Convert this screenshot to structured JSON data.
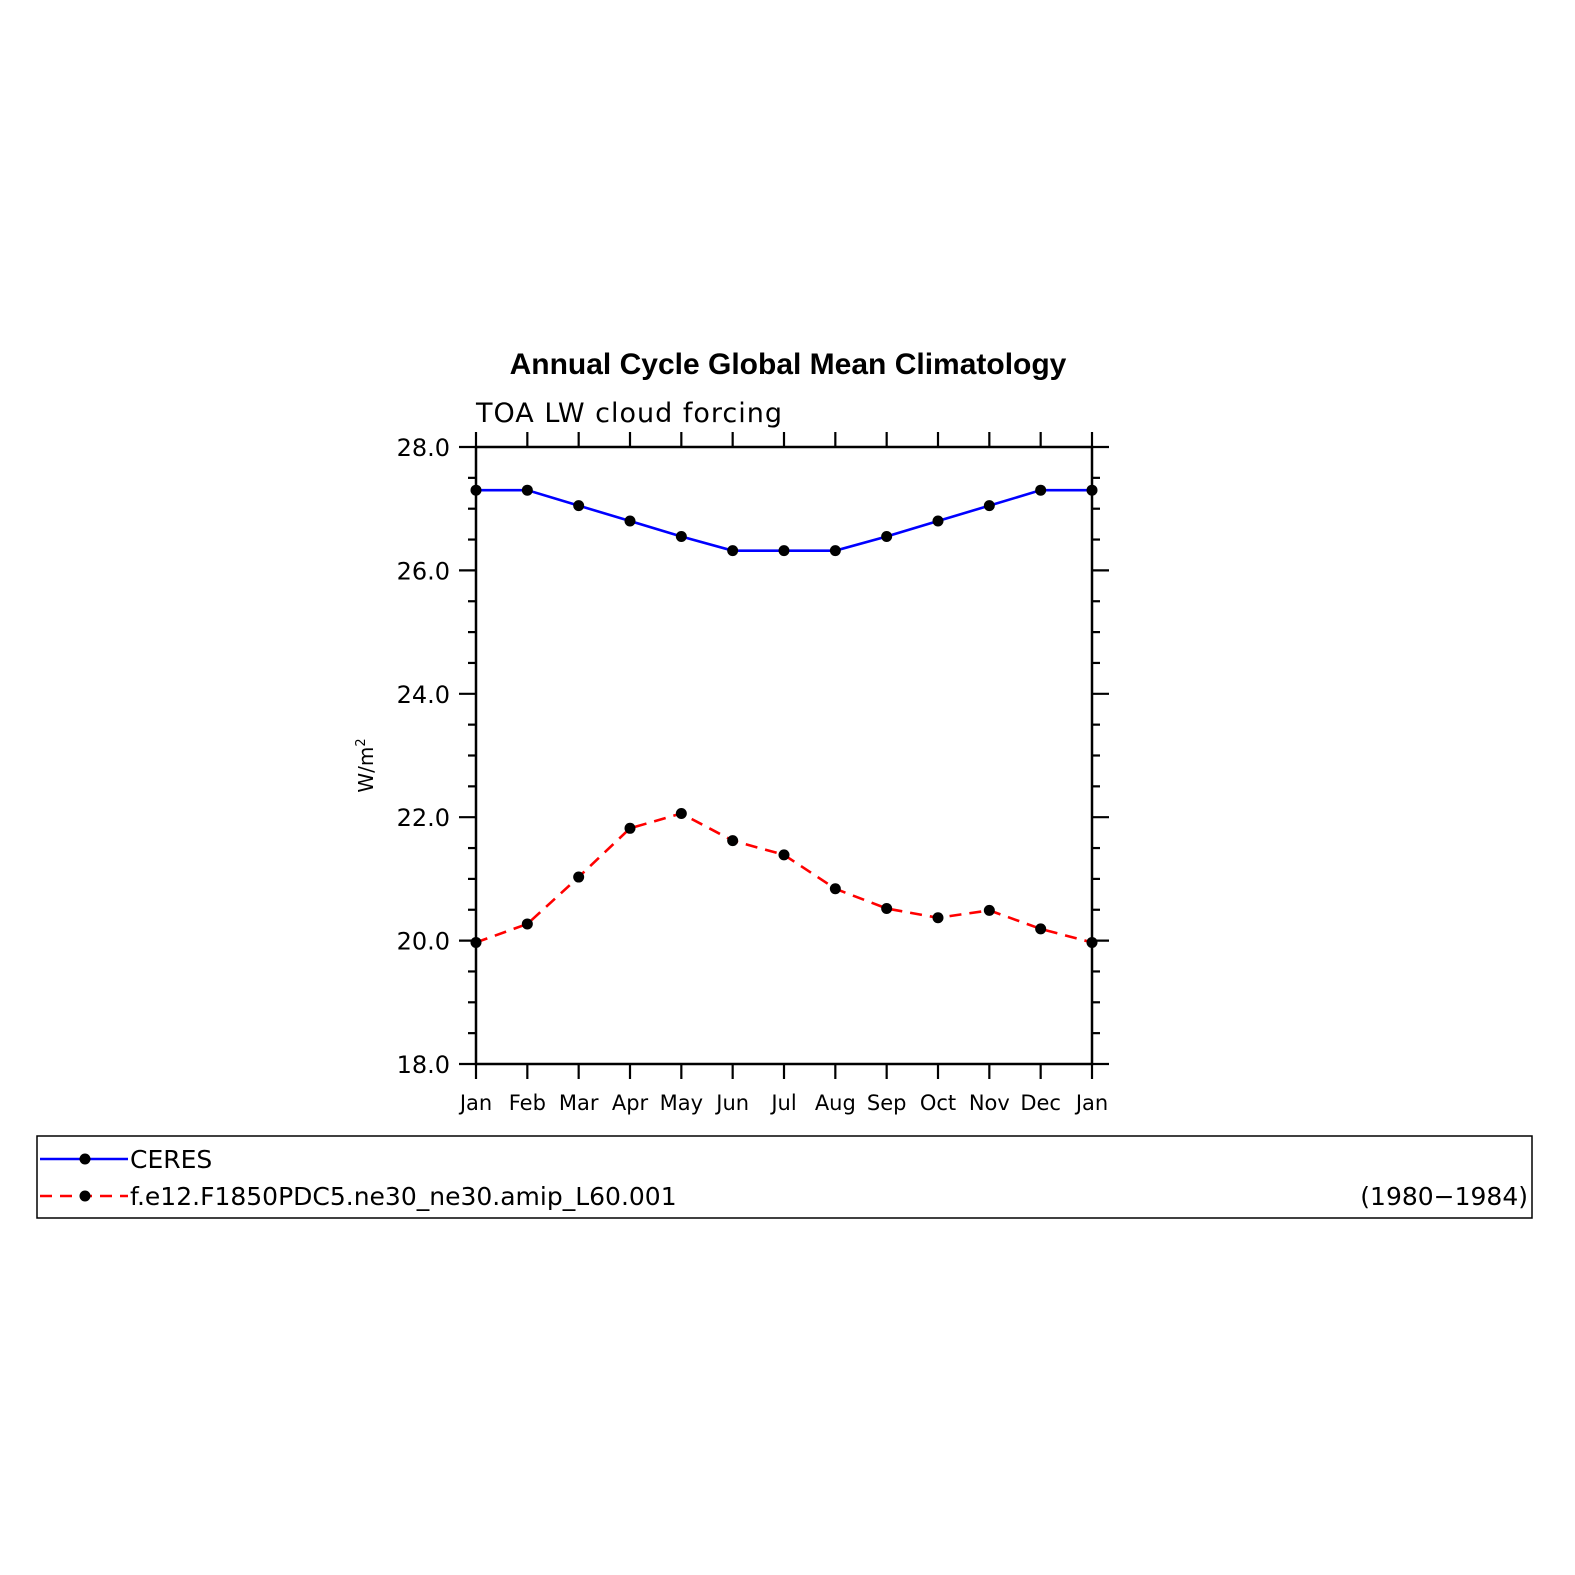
{
  "chart_data": {
    "type": "line",
    "title": "Annual Cycle Global Mean Climatology",
    "subtitle": "TOA LW cloud forcing",
    "xlabel": "",
    "ylabel": "W/m",
    "ylabel_superscript": "2",
    "ylim": [
      18.0,
      28.0
    ],
    "yticks": [
      "18.0",
      "20.0",
      "22.0",
      "24.0",
      "26.0",
      "28.0"
    ],
    "grid": false,
    "legend_placement": "bottom",
    "categories": [
      "Jan",
      "Feb",
      "Mar",
      "Apr",
      "May",
      "Jun",
      "Jul",
      "Aug",
      "Sep",
      "Oct",
      "Nov",
      "Dec",
      "Jan"
    ],
    "series": [
      {
        "name": "CERES",
        "color": "#0000ff",
        "dash": "solid",
        "values": [
          27.3,
          27.3,
          27.05,
          26.8,
          26.55,
          26.32,
          26.32,
          26.32,
          26.55,
          26.8,
          27.05,
          27.3,
          27.3
        ]
      },
      {
        "name": "f.e12.F1850PDC5.ne30_ne30.amip_L60.001",
        "color": "#ff0000",
        "dash": "dashed",
        "values": [
          19.97,
          20.27,
          21.03,
          21.82,
          22.06,
          21.62,
          21.39,
          20.84,
          20.52,
          20.37,
          20.49,
          20.19,
          19.97
        ]
      }
    ],
    "legend_note": "(1980−1984)"
  }
}
